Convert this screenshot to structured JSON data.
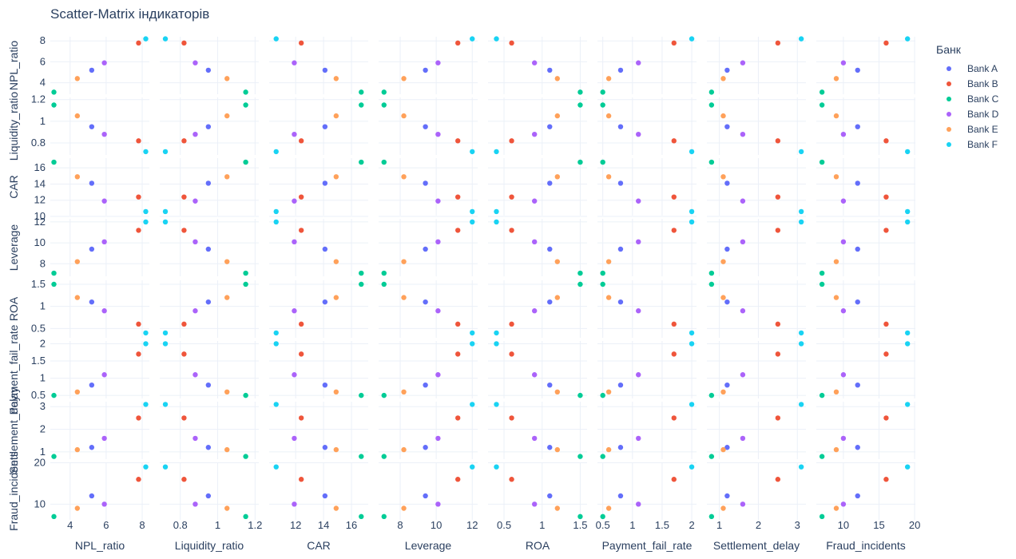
{
  "title": "Scatter-Matrix індикаторів",
  "legend_title": "Банк",
  "chart_data": {
    "type": "scatter",
    "dimensions": [
      "NPL_ratio",
      "Liquidity_ratio",
      "CAR",
      "Leverage",
      "ROA",
      "Payment_fail_rate",
      "Settlement_delay",
      "Fraud_incidents"
    ],
    "series": [
      {
        "name": "Bank A",
        "color": "#636efa",
        "values": [
          5.2,
          0.95,
          14.1,
          9.4,
          1.1,
          0.8,
          1.2,
          12
        ]
      },
      {
        "name": "Bank B",
        "color": "#ef553b",
        "values": [
          7.8,
          0.82,
          12.4,
          11.2,
          0.6,
          1.7,
          2.5,
          16
        ]
      },
      {
        "name": "Bank C",
        "color": "#00cc96",
        "values": [
          3.1,
          1.15,
          16.7,
          7.1,
          1.5,
          0.5,
          0.8,
          7
        ]
      },
      {
        "name": "Bank D",
        "color": "#ab63fa",
        "values": [
          5.9,
          0.88,
          11.9,
          10.1,
          0.9,
          1.1,
          1.6,
          10
        ]
      },
      {
        "name": "Bank E",
        "color": "#ffa15a",
        "values": [
          4.4,
          1.05,
          14.9,
          8.2,
          1.2,
          0.6,
          1.1,
          9
        ]
      },
      {
        "name": "Bank F",
        "color": "#19d3f3",
        "values": [
          8.2,
          0.72,
          10.6,
          12.0,
          0.4,
          2.0,
          3.1,
          19
        ]
      }
    ],
    "ranges": [
      [
        2.9,
        8.4
      ],
      [
        0.69,
        1.22
      ],
      [
        10.1,
        17.2
      ],
      [
        6.8,
        12.3
      ],
      [
        0.29,
        1.59
      ],
      [
        0.41,
        2.08
      ],
      [
        0.68,
        3.22
      ],
      [
        6.2,
        20.1
      ]
    ],
    "tick_values": [
      [
        4,
        6,
        8
      ],
      [
        0.8,
        1,
        1.2
      ],
      [
        10,
        12,
        14,
        16
      ],
      [
        8,
        10,
        12
      ],
      [
        0.5,
        1,
        1.5
      ],
      [
        0.5,
        1,
        1.5,
        2
      ],
      [
        1,
        2,
        3
      ],
      [
        10,
        15,
        20
      ]
    ],
    "x_tick_values": [
      [
        4,
        6,
        8
      ],
      [
        0.8,
        1,
        1.2
      ],
      [
        12,
        14,
        16
      ],
      [
        8,
        10,
        12
      ],
      [
        0.5,
        1,
        1.5
      ],
      [
        0.5,
        1,
        1.5,
        2
      ],
      [
        1,
        2,
        3
      ],
      [
        10,
        15,
        20
      ]
    ],
    "y_tick_values": [
      [
        4,
        6,
        8
      ],
      [
        0.8,
        1,
        1.2
      ],
      [
        10,
        12,
        14,
        16
      ],
      [
        8,
        10,
        12
      ],
      [
        0.5,
        1,
        1.5
      ],
      [
        0.5,
        1,
        1.5,
        2
      ],
      [
        1,
        2,
        3
      ],
      [
        10,
        20
      ]
    ],
    "x_tick_labels": [
      [
        "4",
        "6",
        "8"
      ],
      [
        "0.8",
        "1",
        "1.2"
      ],
      [
        "12",
        "14",
        "16"
      ],
      [
        "8",
        "10",
        "12"
      ],
      [
        "0.5",
        "1",
        "1.5"
      ],
      [
        "0.5",
        "1",
        "1.5",
        "2"
      ],
      [
        "1",
        "2",
        "3"
      ],
      [
        "10",
        "15",
        "20"
      ]
    ],
    "y_tick_labels": [
      [
        "4",
        "6",
        "8"
      ],
      [
        "0.8",
        "1",
        "1.2"
      ],
      [
        "10",
        "12",
        "14",
        "16"
      ],
      [
        "8",
        "10",
        "12"
      ],
      [
        "0.5",
        "1",
        "1.5"
      ],
      [
        "0.5",
        "1",
        "1.5",
        "2"
      ],
      [
        "1",
        "2",
        "3"
      ],
      [
        "10",
        "20"
      ]
    ],
    "grid": true,
    "legend_position": "right"
  }
}
